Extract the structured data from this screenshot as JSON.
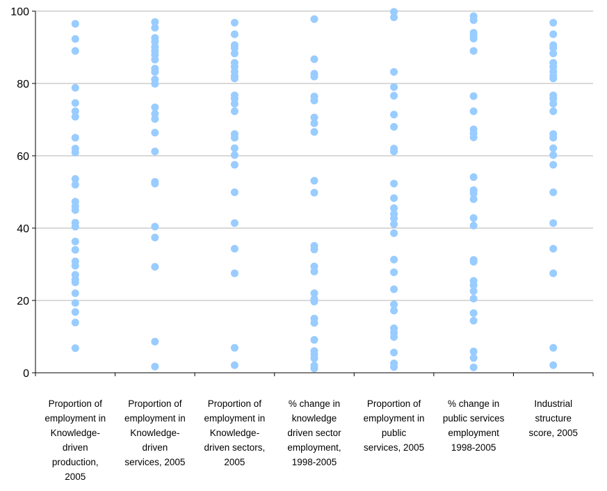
{
  "chart_data": {
    "type": "scatter",
    "title": "",
    "xlabel": "",
    "ylabel": "",
    "ylim": [
      0,
      100
    ],
    "yticks": [
      0,
      20,
      40,
      60,
      80,
      100
    ],
    "grid": true,
    "legend": "none",
    "point_color": "#99ccff",
    "categories": [
      [
        "Proportion of",
        "employment in",
        "Knowledge-",
        "driven",
        "production,",
        "2005"
      ],
      [
        "Proportion of",
        "employment in",
        "Knowledge-",
        "driven",
        "services, 2005"
      ],
      [
        "Proportion of",
        "employment in",
        "Knowledge-",
        "driven sectors,",
        "2005"
      ],
      [
        "% change in",
        "knowledge",
        "driven sector",
        "employment,",
        "1998-2005"
      ],
      [
        "Proportion of",
        "employment in",
        "public",
        "services, 2005"
      ],
      [
        "% change in",
        "public services",
        "employment",
        "1998-2005"
      ],
      [
        "Industrial",
        "structure",
        "score, 2005"
      ]
    ],
    "series": [
      {
        "values": [
          96.5,
          92.3,
          89,
          78.8,
          74.6,
          72.3,
          70.8,
          65,
          62,
          60.9,
          53.6,
          52,
          47.3,
          46,
          45,
          41.5,
          40.4,
          36.3,
          34,
          30.8,
          29.6,
          27.1,
          25.8,
          25,
          22,
          19.3,
          16.8,
          13.9,
          6.8
        ]
      },
      {
        "values": [
          97,
          95.4,
          92.6,
          91.5,
          90.1,
          89,
          87.9,
          86.6,
          84.1,
          83.2,
          81.1,
          79.9,
          73.4,
          71.6,
          70.2,
          66.4,
          61.2,
          52.8,
          52.3,
          40.4,
          37.4,
          29.3,
          8.6,
          1.7
        ]
      },
      {
        "values": [
          96.8,
          93.6,
          90.6,
          89.8,
          88.3,
          85.7,
          84.6,
          83.3,
          82.1,
          81.4,
          76.7,
          75.8,
          74.4,
          72.3,
          66,
          65,
          62.1,
          60.2,
          57.5,
          49.9,
          41.4,
          34.3,
          27.5,
          6.9,
          2.1
        ]
      },
      {
        "values": [
          97.8,
          86.7,
          82.7,
          81.9,
          76.4,
          75.3,
          70.6,
          69,
          66.6,
          53.1,
          49.8,
          35.1,
          34.1,
          29.4,
          28,
          22,
          20.4,
          19.7,
          15,
          13.8,
          9.1,
          6,
          5,
          4,
          2,
          1.2
        ]
      },
      {
        "values": [
          99.8,
          98.3,
          83.2,
          79,
          76.6,
          71.4,
          68,
          62,
          61.2,
          52.3,
          48.3,
          45.5,
          43.9,
          42.7,
          41.1,
          38.6,
          31.3,
          27.8,
          23.1,
          18.9,
          17.2,
          12.3,
          11.1,
          9.9,
          5.6,
          2.6,
          1.6
        ]
      },
      {
        "values": [
          98.6,
          97.5,
          94,
          93.1,
          92.4,
          89,
          76.5,
          72.3,
          67.3,
          66.2,
          65.1,
          54.1,
          50.5,
          49.6,
          48,
          42.8,
          40.7,
          31.2,
          30.7,
          25.4,
          24.2,
          22.6,
          20.5,
          16.5,
          14.4,
          5.9,
          4.1,
          1.5
        ]
      },
      {
        "values": [
          96.8,
          93.6,
          90.6,
          89.8,
          88.3,
          85.7,
          84.6,
          83.3,
          82.1,
          81.4,
          76.7,
          75.8,
          74.4,
          72.3,
          66,
          65,
          62.1,
          60.2,
          57.5,
          49.9,
          41.4,
          34.3,
          27.5,
          6.9,
          2.1
        ]
      }
    ]
  }
}
